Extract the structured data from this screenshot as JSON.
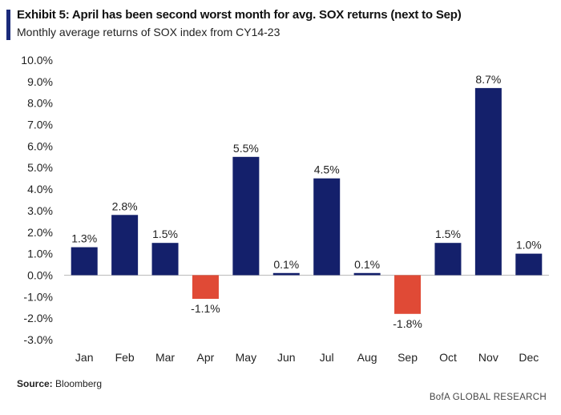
{
  "header": {
    "title": "Exhibit 5: April has been second worst month for avg. SOX returns (next to Sep)",
    "subtitle": "Monthly average returns of SOX index from CY14-23"
  },
  "footer": {
    "source_label": "Source:",
    "source_value": "Bloomberg",
    "brand": "BofA GLOBAL RESEARCH"
  },
  "colors": {
    "positive": "#14206b",
    "negative": "#e04a36"
  },
  "chart_data": {
    "type": "bar",
    "title": "Exhibit 5: April has been second worst month for avg. SOX returns (next to Sep)",
    "subtitle": "Monthly average returns of SOX index from CY14-23",
    "xlabel": "",
    "ylabel": "",
    "categories": [
      "Jan",
      "Feb",
      "Mar",
      "Apr",
      "May",
      "Jun",
      "Jul",
      "Aug",
      "Sep",
      "Oct",
      "Nov",
      "Dec"
    ],
    "values": [
      1.3,
      2.8,
      1.5,
      -1.1,
      5.5,
      0.1,
      4.5,
      0.1,
      -1.8,
      1.5,
      8.7,
      1.0
    ],
    "labels": [
      "1.3%",
      "2.8%",
      "1.5%",
      "-1.1%",
      "5.5%",
      "0.1%",
      "4.5%",
      "0.1%",
      "-1.8%",
      "1.5%",
      "8.7%",
      "1.0%"
    ],
    "ylim": [
      -3.0,
      10.0
    ],
    "yticks": [
      10.0,
      9.0,
      8.0,
      7.0,
      6.0,
      5.0,
      4.0,
      3.0,
      2.0,
      1.0,
      0.0,
      -1.0,
      -2.0,
      -3.0
    ],
    "ytick_labels": [
      "10.0%",
      "9.0%",
      "8.0%",
      "7.0%",
      "6.0%",
      "5.0%",
      "4.0%",
      "3.0%",
      "2.0%",
      "1.0%",
      "0.0%",
      "-1.0%",
      "-2.0%",
      "-3.0%"
    ],
    "grid": false,
    "legend": "none"
  }
}
